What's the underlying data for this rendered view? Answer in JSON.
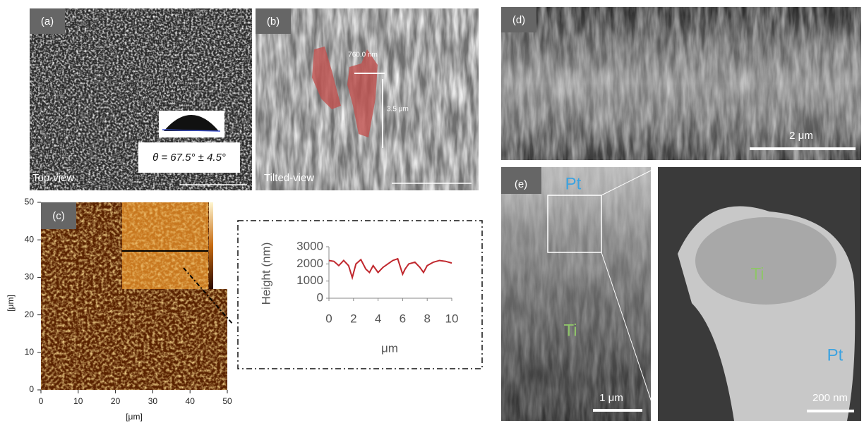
{
  "panels": {
    "a": {
      "label": "(a)",
      "caption": "Top-view",
      "contact_angle": "θ = 67.5° ± 4.5°"
    },
    "b": {
      "label": "(b)",
      "caption": "Tilted-view",
      "width_annotation": "760.0 nm",
      "height_annotation": "3.5 μm"
    },
    "c": {
      "label": "(c)",
      "xticks": [
        0,
        10,
        20,
        30,
        40,
        50
      ],
      "yticks": [
        0,
        10,
        20,
        30,
        40,
        50
      ],
      "xlim": [
        0,
        50
      ],
      "ylim": [
        0,
        50
      ],
      "x_unit": "[μm]",
      "y_unit": "[μm]"
    },
    "d": {
      "label": "(d)",
      "scale_bar": "2 μm"
    },
    "e": {
      "label": "(e)",
      "top_material": "Pt",
      "bottom_material": "Ti",
      "scale_bar": "1 μm"
    },
    "e_zoom": {
      "core_material": "Ti",
      "shell_material": "Pt",
      "scale_bar": "200 nm"
    }
  },
  "chart_data": {
    "type": "line",
    "xlabel": "μm",
    "ylabel": "Height (nm)",
    "x": [
      0,
      0.4,
      0.8,
      1.2,
      1.6,
      1.9,
      2.2,
      2.6,
      3.0,
      3.3,
      3.6,
      4.0,
      4.4,
      4.8,
      5.2,
      5.6,
      6.0,
      6.2,
      6.5,
      7.0,
      7.4,
      7.7,
      8.0,
      8.5,
      9.0,
      9.5,
      10
    ],
    "values": [
      2200,
      2150,
      1900,
      2200,
      1900,
      1200,
      2000,
      2250,
      1700,
      1500,
      1900,
      1500,
      1800,
      2000,
      2200,
      2300,
      1400,
      1700,
      2000,
      2100,
      1800,
      1500,
      1900,
      2100,
      2200,
      2150,
      2050
    ],
    "color": "#c0272d",
    "xlim": [
      0,
      10
    ],
    "ylim": [
      0,
      3000
    ],
    "xticks": [
      0,
      2,
      4,
      6,
      8,
      10
    ],
    "yticks": [
      0,
      1000,
      2000,
      3000
    ]
  }
}
